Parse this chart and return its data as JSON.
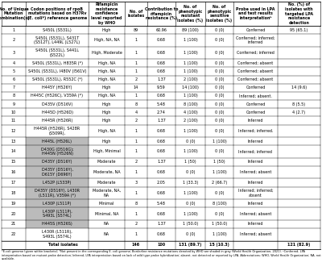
{
  "col_headers": [
    "No. of Unique\nMutation\nCombination(s)",
    "Codon positions of rpoB\nmutations based on H37Rv\n(E. coli*) reference genome",
    "Rifampicin\nresistance\nconfidence\nlevel reported\nby WHO",
    "No. of\nisolates",
    "Contribution to\nrifampicin\nresistance (%)",
    "No. of\nphenotypic\nresistant\nisolates (%)",
    "No. of\nphenotypic\nsensitive\nisolates (%)",
    "Probe used in LPA\nand test results\ninterpretationᵇ",
    "No. (%) of\nisolates with\ntargeted LPA\nresistance\ndetection"
  ],
  "rows": [
    {
      "num": "1",
      "codon": "S450L (S531L)",
      "rif_conf": "High",
      "n_iso": "89",
      "contrib": "60.96",
      "pheno_res": "89 (100)",
      "pheno_sen": "0 (0)",
      "probe": "Conferred",
      "lpa_detect": "95 (65.1)",
      "highlight_codon": false,
      "nlines": 1
    },
    {
      "num": "2",
      "codon": "S450L (S531L), S431T\n(S512T), L449L (L527L)",
      "rif_conf": "High, NA, NA",
      "n_iso": "1",
      "contrib": "0.68",
      "pheno_res": "1 (100)",
      "pheno_sen": "0 (0)",
      "probe": "Conferred; inferred;\ninferred",
      "lpa_detect": "",
      "highlight_codon": false,
      "nlines": 2
    },
    {
      "num": "3",
      "codon": "S450L (S531L), S441L\n(S522L)",
      "rif_conf": "High, Moderate",
      "n_iso": "1",
      "contrib": "0.68",
      "pheno_res": "1 (100)",
      "pheno_sen": "0 (0)",
      "probe": "Conferred; inferred",
      "lpa_detect": "",
      "highlight_codon": false,
      "nlines": 2
    },
    {
      "num": "4",
      "codon": "S450L (S531L), H835R (*)",
      "rif_conf": "High, NA",
      "n_iso": "1",
      "contrib": "0.68",
      "pheno_res": "1 (100)",
      "pheno_sen": "0 (0)",
      "probe": "Conferred; absent",
      "lpa_detect": "",
      "highlight_codon": false,
      "nlines": 1
    },
    {
      "num": "5",
      "codon": "S450L (S531L), I480V (I561V)",
      "rif_conf": "High, NA",
      "n_iso": "1",
      "contrib": "0.68",
      "pheno_res": "1 (100)",
      "pheno_sen": "0 (0)",
      "probe": "Conferred; absent",
      "lpa_detect": "",
      "highlight_codon": false,
      "nlines": 1
    },
    {
      "num": "6",
      "codon": "S450L (S531L), R552C (*)",
      "rif_conf": "High, NA",
      "n_iso": "2",
      "contrib": "1.37",
      "pheno_res": "2 (100)",
      "pheno_sen": "0 (0)",
      "probe": "Conferred; absent",
      "lpa_detect": "",
      "highlight_codon": false,
      "nlines": 1
    },
    {
      "num": "7",
      "codon": "H445Y (H526Y)",
      "rif_conf": "High",
      "n_iso": "14",
      "contrib": "9.59",
      "pheno_res": "14 (100)",
      "pheno_sen": "0 (0)",
      "probe": "Conferred",
      "lpa_detect": "14 (9.6)",
      "highlight_codon": false,
      "nlines": 1
    },
    {
      "num": "8",
      "codon": "H445C (H526C), V359A (*)",
      "rif_conf": "High, NA",
      "n_iso": "1",
      "contrib": "0.68",
      "pheno_res": "1 (100)",
      "pheno_sen": "0 (0)",
      "probe": "Inferred; absent.",
      "lpa_detect": "",
      "highlight_codon": false,
      "nlines": 1
    },
    {
      "num": "9",
      "codon": "D435V (D516V)",
      "rif_conf": "High",
      "n_iso": "8",
      "contrib": "5.48",
      "pheno_res": "8 (100)",
      "pheno_sen": "0 (0)",
      "probe": "Conferred",
      "lpa_detect": "8 (5.5)",
      "highlight_codon": false,
      "nlines": 1
    },
    {
      "num": "10",
      "codon": "H445D (H526D)",
      "rif_conf": "High",
      "n_iso": "4",
      "contrib": "2.74",
      "pheno_res": "4 (100)",
      "pheno_sen": "0 (0)",
      "probe": "Conferred",
      "lpa_detect": "4 (2.7)",
      "highlight_codon": false,
      "nlines": 1
    },
    {
      "num": "11",
      "codon": "H445R (H526R)",
      "rif_conf": "High",
      "n_iso": "2",
      "contrib": "1.37",
      "pheno_res": "2 (100)",
      "pheno_sen": "0 (0)",
      "probe": "Inferred",
      "lpa_detect": "",
      "highlight_codon": false,
      "nlines": 1
    },
    {
      "num": "12",
      "codon": "H445R (H526R), S428R\n(S509R),",
      "rif_conf": "High, NA",
      "n_iso": "1",
      "contrib": "0.68",
      "pheno_res": "1 (100)",
      "pheno_sen": "0 (0)",
      "probe": "Inferred; inferred.",
      "lpa_detect": "",
      "highlight_codon": false,
      "nlines": 2
    },
    {
      "num": "13",
      "codon": "H445L (H526L)",
      "rif_conf": "High",
      "n_iso": "1",
      "contrib": "0.68",
      "pheno_res": "0 (0)",
      "pheno_sen": "1 (100)",
      "probe": "Inferred",
      "lpa_detect": "",
      "highlight_codon": true,
      "nlines": 1
    },
    {
      "num": "14",
      "codon": "D430G (D516G);\nH445N (H526N)",
      "rif_conf": "High, Minimal",
      "n_iso": "1",
      "contrib": "0.68",
      "pheno_res": "1 (100)",
      "pheno_sen": "0 (0)",
      "probe": "Inferred; inferred",
      "lpa_detect": "",
      "highlight_codon": true,
      "nlines": 2
    },
    {
      "num": "15",
      "codon": "D435Y (D516Y)",
      "rif_conf": "Moderate",
      "n_iso": "2",
      "contrib": "1.37",
      "pheno_res": "1 (50)",
      "pheno_sen": "1 (50)",
      "probe": "Inferred",
      "lpa_detect": "",
      "highlight_codon": true,
      "nlines": 1
    },
    {
      "num": "16",
      "codon": "D435Y (D516Y),\nD615Y (D696Y)",
      "rif_conf": "Moderate, NA",
      "n_iso": "1",
      "contrib": "0.68",
      "pheno_res": "0 (0)",
      "pheno_sen": "1 (100)",
      "probe": "Inferred; absent",
      "lpa_detect": "",
      "highlight_codon": true,
      "nlines": 2
    },
    {
      "num": "17",
      "codon": "L452P (L533P)",
      "rif_conf": "Moderate",
      "n_iso": "3",
      "contrib": "2.05",
      "pheno_res": "1 (33.3)",
      "pheno_sen": "2 (66.7)",
      "probe": "Inferred",
      "lpa_detect": "",
      "highlight_codon": true,
      "nlines": 1
    },
    {
      "num": "18",
      "codon": "D435Y (D516Y), L430R\n(L511R), V359A (*)",
      "rif_conf": "Moderate, NA,\nNA",
      "n_iso": "1",
      "contrib": "0.68",
      "pheno_res": "1 (100)",
      "pheno_sen": "0 (0)",
      "probe": "Inferred; inferred;\nabsent",
      "lpa_detect": "",
      "highlight_codon": true,
      "nlines": 2
    },
    {
      "num": "19",
      "codon": "L430P (L511P)",
      "rif_conf": "Minimal",
      "n_iso": "8",
      "contrib": "5.48",
      "pheno_res": "0 (0)",
      "pheno_sen": "8 (100)",
      "probe": "Inferred",
      "lpa_detect": "",
      "highlight_codon": true,
      "nlines": 1
    },
    {
      "num": "20",
      "codon": "L430P (L511P),\nS493L (S574L)",
      "rif_conf": "Minimal, NA",
      "n_iso": "1",
      "contrib": "0.68",
      "pheno_res": "1 (100)",
      "pheno_sen": "0 (0)",
      "probe": "Inferred; absent",
      "lpa_detect": "",
      "highlight_codon": true,
      "nlines": 2
    },
    {
      "num": "21",
      "codon": "H445S (H526S)",
      "rif_conf": "NA",
      "n_iso": "2",
      "contrib": "1.37",
      "pheno_res": "1 (50.0)",
      "pheno_sen": "1 (50.0)",
      "probe": "Inferred",
      "lpa_detect": "",
      "highlight_codon": true,
      "nlines": 1
    },
    {
      "num": "22",
      "codon": "L430R (L511R),\nS493L (S574L)",
      "rif_conf": "NA",
      "n_iso": "1",
      "contrib": "0.68",
      "pheno_res": "0 (0)",
      "pheno_sen": "1 (100)",
      "probe": "Inferred; absent",
      "lpa_detect": "",
      "highlight_codon": false,
      "nlines": 2
    }
  ],
  "total_row": {
    "label": "Total isolates",
    "n_iso": "146",
    "contrib": "100",
    "pheno_res": "131 (89.7)",
    "pheno_sen": "15 (10.3)",
    "lpa_detect": "121 (82.9)"
  },
  "footnote": "*E.coli genome (given within brackets); *Not present in the corresponding E. coli genome; Borderline resistance mutations denoted by WHO are shaded in gray (World Health Organization, 2021). ᵇConferred- LPA interpretation based on mutant probe detection; Inferred- LPA interpretation based on lack of wild type probe hybridization; absent- not detected or reported by LPA. Abbreviations: WHO, World Health Organization; NA, not available.",
  "highlight_color": "#bbbbbb",
  "font_size": 3.5,
  "header_font_size": 3.4
}
